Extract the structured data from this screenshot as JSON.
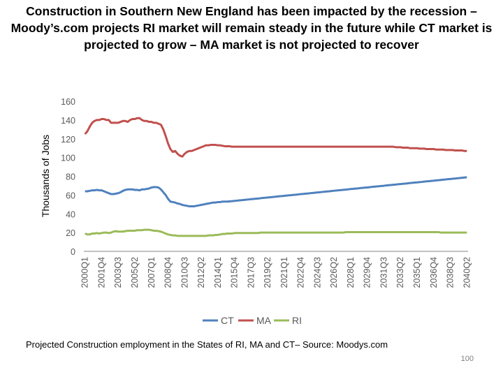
{
  "chart_data": {
    "type": "line",
    "title": "Construction in Southern New England has been impacted by the recession – Moody’s.com projects RI market will remain steady in the future while CT market is projected to grow – MA market is not projected to recover",
    "y_label": "Thousands of Jobs",
    "categories": [
      "2000Q1",
      null,
      null,
      null,
      null,
      null,
      null,
      "2001Q4",
      null,
      null,
      null,
      null,
      null,
      null,
      "2003Q3",
      null,
      null,
      null,
      null,
      null,
      null,
      "2005Q2",
      null,
      null,
      null,
      null,
      null,
      null,
      "2007Q1",
      null,
      null,
      null,
      null,
      null,
      null,
      "2008Q4",
      null,
      null,
      null,
      null,
      null,
      null,
      "2010Q3",
      null,
      null,
      null,
      null,
      null,
      null,
      "2012Q2",
      null,
      null,
      null,
      null,
      null,
      null,
      "2014Q1",
      null,
      null,
      null,
      null,
      null,
      null,
      "2015Q4",
      null,
      null,
      null,
      null,
      null,
      null,
      "2017Q3",
      null,
      null,
      null,
      null,
      null,
      null,
      "2019Q2",
      null,
      null,
      null,
      null,
      null,
      null,
      "2021Q1",
      null,
      null,
      null,
      null,
      null,
      null,
      "2022Q4",
      null,
      null,
      null,
      null,
      null,
      null,
      "2024Q3",
      null,
      null,
      null,
      null,
      null,
      null,
      "2026Q2",
      null,
      null,
      null,
      null,
      null,
      null,
      "2028Q1",
      null,
      null,
      null,
      null,
      null,
      null,
      "2029Q4",
      null,
      null,
      null,
      null,
      null,
      null,
      "2031Q3",
      null,
      null,
      null,
      null,
      null,
      null,
      "2033Q2",
      null,
      null,
      null,
      null,
      null,
      null,
      "2035Q1",
      null,
      null,
      null,
      null,
      null,
      null,
      "2036Q4",
      null,
      null,
      null,
      null,
      null,
      null,
      "2038Q3",
      null,
      null,
      null,
      null,
      null,
      null,
      "2040Q2"
    ],
    "series": [
      {
        "name": "CT",
        "color": "#4f81bd",
        "values": [
          64,
          64,
          64.5,
          65,
          65,
          65.5,
          65,
          65,
          64,
          63,
          62,
          61,
          61,
          61.5,
          62,
          63,
          64.5,
          65.5,
          66,
          66,
          66,
          65.5,
          65.5,
          65,
          66,
          66,
          66.5,
          67,
          68,
          68.5,
          68.5,
          68,
          66,
          63,
          60,
          56,
          53,
          52.5,
          52,
          51,
          50.5,
          49.5,
          49,
          48.5,
          48,
          48,
          48,
          48.5,
          49,
          49.5,
          50,
          50.5,
          51,
          51.5,
          52,
          52,
          52.5,
          52.5,
          53,
          53,
          53.0,
          53.3,
          53.5,
          53.8,
          54.0,
          54.3,
          54.5,
          54.8,
          55.1,
          55.3,
          55.6,
          55.8,
          56.1,
          56.3,
          56.6,
          56.9,
          57.1,
          57.4,
          57.6,
          57.9,
          58.1,
          58.4,
          58.7,
          58.9,
          59.2,
          59.4,
          59.7,
          59.9,
          60.2,
          60.4,
          60.7,
          61.0,
          61.2,
          61.5,
          61.7,
          62.0,
          62.2,
          62.5,
          62.8,
          63.0,
          63.3,
          63.5,
          63.8,
          64.0,
          64.3,
          64.6,
          64.8,
          65.1,
          65.3,
          65.6,
          65.8,
          66.1,
          66.4,
          66.6,
          66.9,
          67.1,
          67.4,
          67.6,
          67.9,
          68.1,
          68.4,
          68.7,
          68.9,
          69.2,
          69.4,
          69.7,
          69.9,
          70.2,
          70.5,
          70.7,
          71.0,
          71.2,
          71.5,
          71.7,
          72.0,
          72.2,
          72.5,
          72.8,
          73.0,
          73.3,
          73.5,
          73.8,
          74.0,
          74.3,
          74.6,
          74.8,
          75.1,
          75.3,
          75.6,
          75.8,
          76.1,
          76.4,
          76.6,
          76.9,
          77.1,
          77.4,
          77.6,
          77.9,
          78.1,
          78.4,
          78.7,
          79.0
        ]
      },
      {
        "name": "MA",
        "color": "#c0504d",
        "values": [
          125,
          128,
          133,
          137,
          139,
          140,
          140,
          141,
          141,
          140,
          140,
          137,
          137,
          137,
          137,
          138,
          139,
          139,
          138,
          140,
          141,
          141,
          142,
          142,
          140,
          139,
          139,
          138,
          138,
          137,
          137,
          136,
          135,
          130,
          123,
          115,
          109,
          106,
          107,
          104,
          102,
          101,
          104,
          106,
          107,
          107,
          108,
          109,
          110,
          111,
          112,
          113,
          113,
          113.5,
          113.5,
          113.5,
          113,
          113,
          112.5,
          112,
          112,
          112,
          111.5,
          111.5,
          111.5,
          111.5,
          111.5,
          111.5,
          111.5,
          111.5,
          111.5,
          111.5,
          111.5,
          111.5,
          111.5,
          111.5,
          111.5,
          111.5,
          111.5,
          111.5,
          111.5,
          111.5,
          111.5,
          111.5,
          111.5,
          111.5,
          111.5,
          111.5,
          111.5,
          111.5,
          111.5,
          111.5,
          111.5,
          111.5,
          111.5,
          111.5,
          111.5,
          111.5,
          111.5,
          111.5,
          111.5,
          111.5,
          111.5,
          111.5,
          111.5,
          111.5,
          111.5,
          111.5,
          111.5,
          111.5,
          111.5,
          111.5,
          111.5,
          111.5,
          111.5,
          111.5,
          111.5,
          111.5,
          111.5,
          111.5,
          111.5,
          111.5,
          111.5,
          111.5,
          111.5,
          111.5,
          111.5,
          111.5,
          111.5,
          111.5,
          111.5,
          111,
          111,
          111,
          110.5,
          110.5,
          110.5,
          110,
          110,
          110,
          110,
          109.5,
          109.5,
          109.5,
          109,
          109,
          109,
          109,
          108.5,
          108.5,
          108.5,
          108.5,
          108,
          108,
          108,
          108,
          107.5,
          107.5,
          107.5,
          107.5,
          107,
          107
        ]
      },
      {
        "name": "RI",
        "color": "#9bbb59",
        "values": [
          19,
          18,
          18,
          19,
          19,
          19.5,
          19,
          19.5,
          20,
          20,
          19.5,
          20,
          21,
          21.5,
          21,
          21,
          21,
          21.5,
          22,
          22,
          22,
          22,
          22.5,
          22.5,
          22.5,
          23,
          23,
          23,
          22.5,
          22,
          22,
          21.5,
          21,
          20,
          19,
          18,
          17.5,
          17,
          17,
          16.5,
          16.5,
          16.5,
          16.5,
          16.5,
          16.5,
          16.5,
          16.5,
          16.5,
          16.5,
          16.5,
          16.5,
          16.5,
          17,
          17,
          17,
          17.5,
          17.5,
          18,
          18.5,
          18.5,
          19,
          19,
          19,
          19.5,
          19.5,
          19.5,
          19.5,
          19.5,
          19.5,
          19.5,
          19.5,
          19.5,
          19.5,
          19.5,
          20,
          20,
          20,
          20,
          20,
          20,
          20,
          20,
          20,
          20,
          20,
          20,
          20,
          20,
          20,
          20,
          20,
          20,
          20,
          20,
          20,
          20,
          20,
          20,
          20,
          20,
          20,
          20,
          20,
          20,
          20,
          20,
          20,
          20,
          20,
          20,
          20.5,
          20.5,
          20.5,
          20.5,
          20.5,
          20.5,
          20.5,
          20.5,
          20.5,
          20.5,
          20.5,
          20.5,
          20.5,
          20.5,
          20.5,
          20.5,
          20.5,
          20.5,
          20.5,
          20.5,
          20.5,
          20.5,
          20.5,
          20.5,
          20.5,
          20.5,
          20.5,
          20.5,
          20.5,
          20.5,
          20.5,
          20.5,
          20.5,
          20.5,
          20.5,
          20.5,
          20.5,
          20.5,
          20.5,
          20.5,
          20,
          20,
          20,
          20,
          20,
          20,
          20,
          20,
          20,
          20,
          20,
          20
        ]
      }
    ],
    "ylim": [
      0,
      160
    ],
    "yticks": [
      0,
      20,
      40,
      60,
      80,
      100,
      120,
      140,
      160
    ],
    "grid": false,
    "legend": "bottom"
  },
  "slide": {
    "caption": "Projected Construction employment in the States of RI, MA and CT– Source: Moodys.com",
    "page_number": 100
  }
}
